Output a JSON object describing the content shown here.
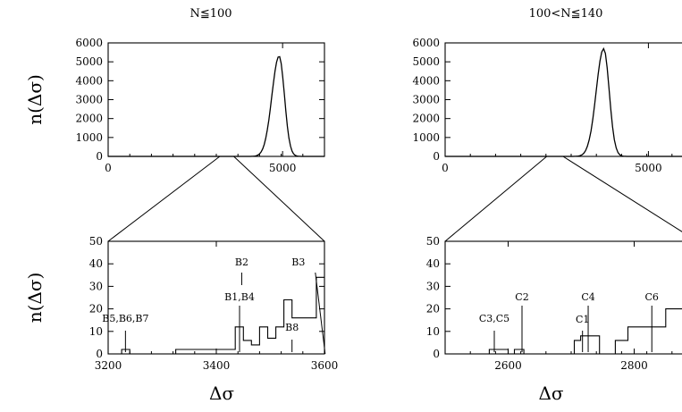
{
  "chart_data": [
    {
      "id": "left-top",
      "type": "area",
      "title": "N≦100",
      "ylabel": "n(Δσ)",
      "xlabel": "",
      "xlim": [
        0,
        6200
      ],
      "ylim": [
        0,
        6000
      ],
      "xticks": [
        0,
        5000
      ],
      "yticks": [
        0,
        1000,
        2000,
        3000,
        4000,
        5000,
        6000
      ],
      "peak_x": 4900,
      "peak_y": 5300,
      "width": 180,
      "grid": false
    },
    {
      "id": "left-bottom",
      "type": "line",
      "ylabel": "n(Δσ)",
      "xlabel": "Δσ",
      "xlim": [
        3200,
        3600
      ],
      "ylim": [
        0,
        50
      ],
      "xticks": [
        3200,
        3400,
        3600
      ],
      "yticks": [
        0,
        10,
        20,
        30,
        40,
        50
      ],
      "step": [
        [
          3200,
          0
        ],
        [
          3225,
          0
        ],
        [
          3225,
          2
        ],
        [
          3240,
          2
        ],
        [
          3240,
          0
        ],
        [
          3325,
          0
        ],
        [
          3325,
          2
        ],
        [
          3435,
          2
        ],
        [
          3435,
          12
        ],
        [
          3450,
          12
        ],
        [
          3450,
          6
        ],
        [
          3465,
          6
        ],
        [
          3465,
          4
        ],
        [
          3480,
          4
        ],
        [
          3480,
          12
        ],
        [
          3495,
          12
        ],
        [
          3495,
          7
        ],
        [
          3510,
          7
        ],
        [
          3510,
          12
        ],
        [
          3525,
          12
        ],
        [
          3525,
          24
        ],
        [
          3540,
          24
        ],
        [
          3540,
          16
        ],
        [
          3585,
          16
        ],
        [
          3585,
          34
        ],
        [
          3600,
          34
        ]
      ],
      "annotations": [
        {
          "text": "B5,B6,B7",
          "x": 3232,
          "y": 0
        },
        {
          "text": "B1,B4",
          "x": 3443,
          "y": 0
        },
        {
          "text": "B2",
          "x": 3447,
          "y": 0
        },
        {
          "text": "B8",
          "x": 3540,
          "y": 0
        },
        {
          "text": "B3",
          "x": 3598,
          "y": 0
        }
      ],
      "grid": false
    },
    {
      "id": "right-top",
      "type": "area",
      "title": "100<N≦140",
      "ylabel": "",
      "xlabel": "",
      "xlim": [
        0,
        6200
      ],
      "ylim": [
        0,
        6000
      ],
      "xticks": [
        0,
        5000
      ],
      "yticks": [
        0,
        1000,
        2000,
        3000,
        4000,
        5000,
        6000
      ],
      "peak_x": 3900,
      "peak_y": 5700,
      "width": 160,
      "grid": false
    },
    {
      "id": "right-bottom",
      "type": "line",
      "ylabel": "",
      "xlabel": "Δσ",
      "xlim": [
        2500,
        2900
      ],
      "ylim": [
        0,
        50
      ],
      "xticks": [
        2600,
        2800
      ],
      "yticks": [
        0,
        10,
        20,
        30,
        40,
        50
      ],
      "step": [
        [
          2500,
          0
        ],
        [
          2570,
          0
        ],
        [
          2570,
          2
        ],
        [
          2600,
          2
        ],
        [
          2600,
          0
        ],
        [
          2610,
          0
        ],
        [
          2610,
          2
        ],
        [
          2625,
          2
        ],
        [
          2625,
          0
        ],
        [
          2705,
          0
        ],
        [
          2705,
          6
        ],
        [
          2715,
          6
        ],
        [
          2715,
          8
        ],
        [
          2745,
          8
        ],
        [
          2745,
          0
        ],
        [
          2770,
          0
        ],
        [
          2770,
          6
        ],
        [
          2790,
          6
        ],
        [
          2790,
          12
        ],
        [
          2850,
          12
        ],
        [
          2850,
          20
        ],
        [
          2900,
          20
        ]
      ],
      "annotations": [
        {
          "text": "C3,C5",
          "x": 2578,
          "y": 0
        },
        {
          "text": "C2",
          "x": 2622,
          "y": 0
        },
        {
          "text": "C1",
          "x": 2718,
          "y": 0
        },
        {
          "text": "C4",
          "x": 2727,
          "y": 0
        },
        {
          "text": "C6",
          "x": 2828,
          "y": 0
        }
      ],
      "grid": false
    }
  ]
}
